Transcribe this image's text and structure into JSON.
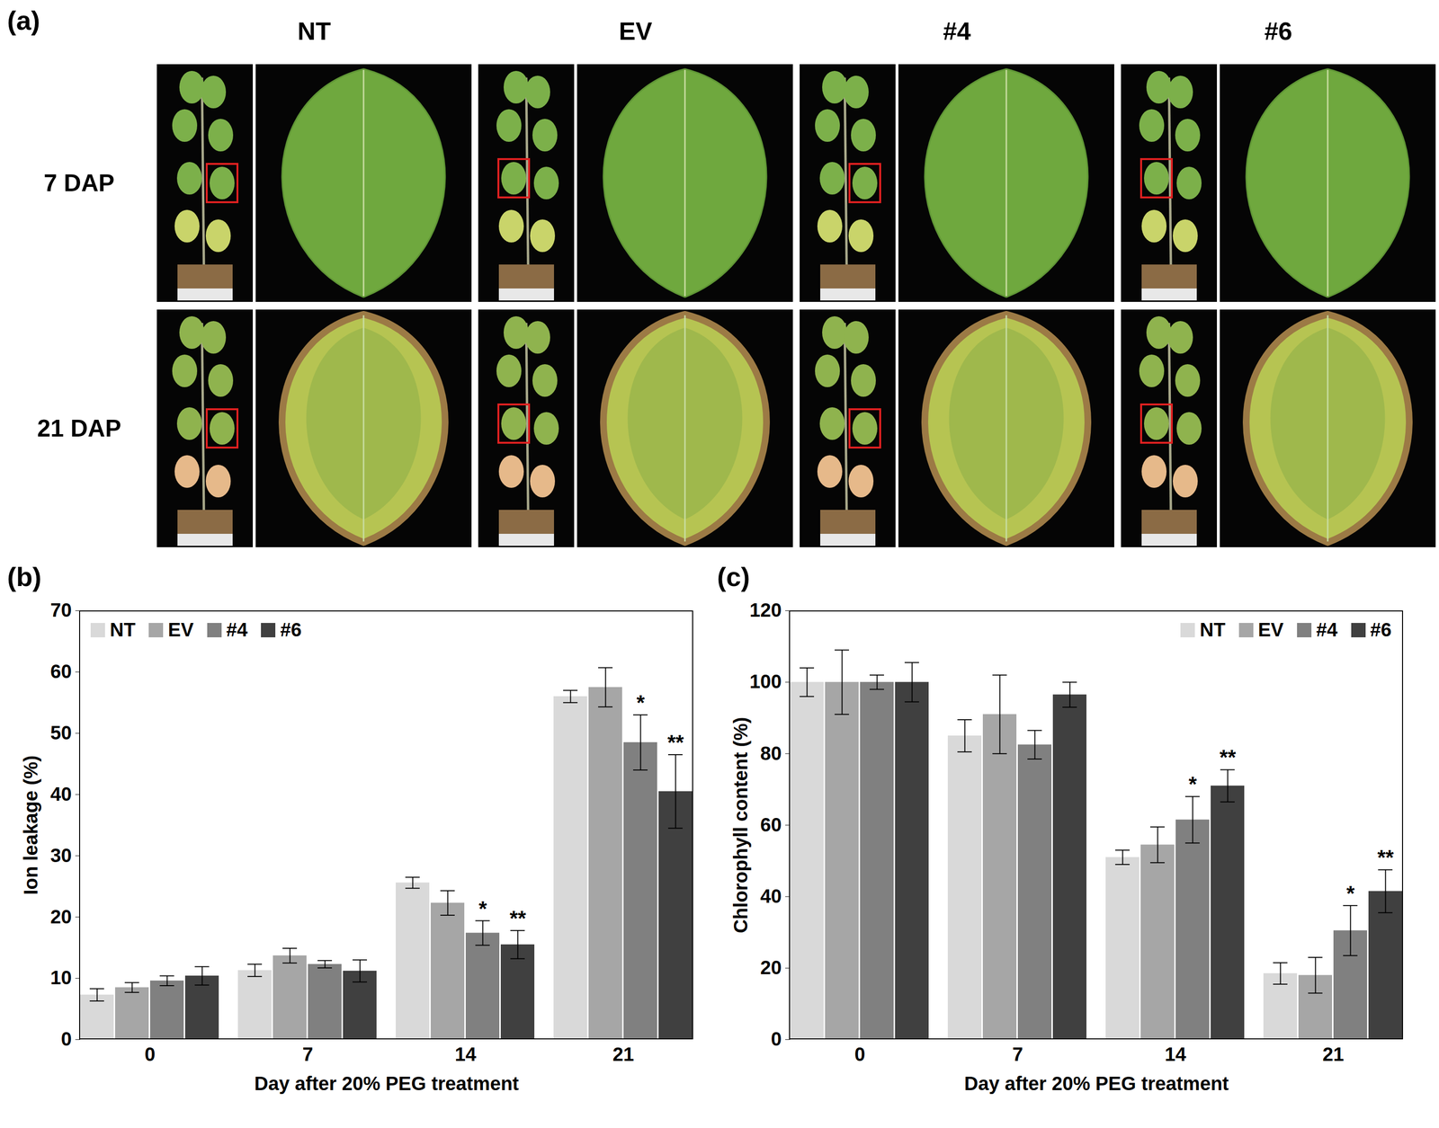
{
  "panel_a": {
    "label": "(a)",
    "columns": [
      "NT",
      "EV",
      "#4",
      "#6"
    ],
    "rows": [
      "7 DAP",
      "21 DAP"
    ]
  },
  "chart_data": [
    {
      "type": "bar",
      "panel_label": "(b)",
      "xlabel": "Day after 20% PEG treatment",
      "ylabel": "Ion leakage (%)",
      "categories": [
        0,
        7,
        14,
        21
      ],
      "ylim": [
        0,
        70
      ],
      "yticks": [
        0,
        10,
        20,
        30,
        40,
        50,
        60,
        70
      ],
      "legend": "top-left",
      "series": [
        {
          "name": "NT",
          "color": "#d9d9d9",
          "values": [
            7.3,
            11.3,
            25.6,
            56.0
          ],
          "errors": [
            1.0,
            1.0,
            0.9,
            1.0
          ]
        },
        {
          "name": "EV",
          "color": "#a6a6a6",
          "values": [
            8.5,
            13.7,
            22.3,
            57.5
          ],
          "errors": [
            0.8,
            1.2,
            2.0,
            3.2
          ]
        },
        {
          "name": "#4",
          "color": "#808080",
          "values": [
            9.6,
            12.3,
            17.4,
            48.5
          ],
          "errors": [
            0.8,
            0.6,
            2.0,
            4.5
          ]
        },
        {
          "name": "#6",
          "color": "#404040",
          "values": [
            10.4,
            11.2,
            15.5,
            40.5
          ],
          "errors": [
            1.5,
            1.8,
            2.3,
            6.0
          ]
        }
      ],
      "annotations": [
        {
          "x": 14,
          "series": "#4",
          "text": "*"
        },
        {
          "x": 14,
          "series": "#6",
          "text": "**"
        },
        {
          "x": 21,
          "series": "#4",
          "text": "*"
        },
        {
          "x": 21,
          "series": "#6",
          "text": "**"
        }
      ]
    },
    {
      "type": "bar",
      "panel_label": "(c)",
      "xlabel": "Day after 20% PEG treatment",
      "ylabel": "Chlorophyll content (%)",
      "categories": [
        0,
        7,
        14,
        21
      ],
      "ylim": [
        0,
        120
      ],
      "yticks": [
        0,
        20,
        40,
        60,
        80,
        100,
        120
      ],
      "legend": "top-right",
      "series": [
        {
          "name": "NT",
          "color": "#d9d9d9",
          "values": [
            100,
            85,
            51,
            18.5
          ],
          "errors": [
            4,
            4.5,
            2,
            3
          ]
        },
        {
          "name": "EV",
          "color": "#a6a6a6",
          "values": [
            100,
            91,
            54.5,
            18
          ],
          "errors": [
            9,
            11,
            5,
            5
          ]
        },
        {
          "name": "#4",
          "color": "#808080",
          "values": [
            100,
            82.5,
            61.5,
            30.5
          ],
          "errors": [
            2,
            4,
            6.5,
            7
          ]
        },
        {
          "name": "#6",
          "color": "#404040",
          "values": [
            100,
            96.5,
            71,
            41.5
          ],
          "errors": [
            5.5,
            3.5,
            4.5,
            6
          ]
        }
      ],
      "annotations": [
        {
          "x": 14,
          "series": "#4",
          "text": "*"
        },
        {
          "x": 14,
          "series": "#6",
          "text": "**"
        },
        {
          "x": 21,
          "series": "#4",
          "text": "*"
        },
        {
          "x": 21,
          "series": "#6",
          "text": "**"
        }
      ]
    }
  ]
}
